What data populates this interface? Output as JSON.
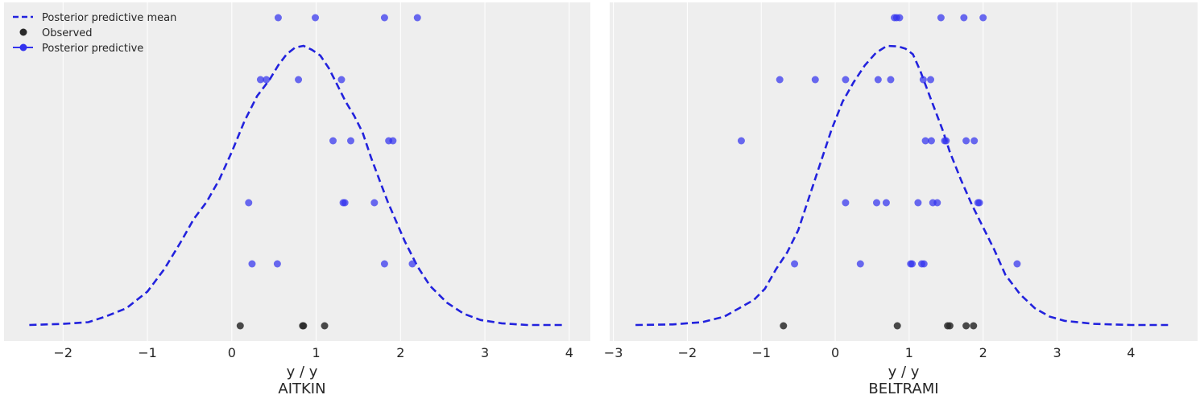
{
  "chart_data": [
    {
      "type": "scatter",
      "xlabel_line1": "y / y",
      "xlabel_line2": "AITKIN",
      "xlim": [
        -2.7,
        4.25
      ],
      "xticks": [
        -2,
        -1,
        0,
        1,
        2,
        3,
        4
      ],
      "xtick_labels": [
        "−2",
        "−1",
        "0",
        "1",
        "2",
        "3",
        "4"
      ],
      "grid": true,
      "legend": {
        "placement": "top-left",
        "entries": [
          {
            "label": "Posterior predictive mean",
            "style": "dashed-line"
          },
          {
            "label": "Observed",
            "style": "marker"
          },
          {
            "label": "Posterior predictive",
            "style": "line-marker"
          }
        ]
      },
      "mean_curve": [
        [
          -2.4,
          0.0
        ],
        [
          -2.0,
          0.004
        ],
        [
          -1.7,
          0.01
        ],
        [
          -1.5,
          0.03
        ],
        [
          -1.25,
          0.06
        ],
        [
          -1.0,
          0.12
        ],
        [
          -0.8,
          0.2
        ],
        [
          -0.6,
          0.3
        ],
        [
          -0.45,
          0.38
        ],
        [
          -0.3,
          0.44
        ],
        [
          -0.15,
          0.52
        ],
        [
          0.0,
          0.62
        ],
        [
          0.15,
          0.73
        ],
        [
          0.3,
          0.82
        ],
        [
          0.45,
          0.88
        ],
        [
          0.55,
          0.93
        ],
        [
          0.65,
          0.97
        ],
        [
          0.75,
          0.994
        ],
        [
          0.85,
          1.0
        ],
        [
          0.95,
          0.986
        ],
        [
          1.05,
          0.965
        ],
        [
          1.15,
          0.92
        ],
        [
          1.25,
          0.86
        ],
        [
          1.35,
          0.8
        ],
        [
          1.45,
          0.75
        ],
        [
          1.55,
          0.69
        ],
        [
          1.65,
          0.6
        ],
        [
          1.75,
          0.52
        ],
        [
          1.85,
          0.44
        ],
        [
          1.95,
          0.37
        ],
        [
          2.05,
          0.3
        ],
        [
          2.2,
          0.21
        ],
        [
          2.35,
          0.14
        ],
        [
          2.55,
          0.08
        ],
        [
          2.75,
          0.04
        ],
        [
          2.95,
          0.018
        ],
        [
          3.2,
          0.006
        ],
        [
          3.5,
          0.0
        ],
        [
          3.95,
          0.0
        ]
      ],
      "observed": [
        0.1,
        0.84,
        0.85,
        1.1
      ],
      "posterior_predictive": [
        [
          0.55,
          2.2,
          0.99,
          1.81
        ],
        [
          0.34,
          0.41,
          0.79,
          1.3
        ],
        [
          1.2,
          1.41,
          1.86,
          1.91
        ],
        [
          0.2,
          1.32,
          1.34,
          1.69
        ],
        [
          0.24,
          0.54,
          1.81,
          2.14
        ]
      ]
    },
    {
      "type": "scatter",
      "xlabel_line1": "y / y",
      "xlabel_line2": "BELTRAMI",
      "xlim": [
        -3.05,
        4.9
      ],
      "xticks": [
        -3,
        -2,
        -1,
        0,
        1,
        2,
        3,
        4
      ],
      "xtick_labels": [
        "−3",
        "−2",
        "−1",
        "0",
        "1",
        "2",
        "3",
        "4"
      ],
      "grid": true,
      "mean_curve": [
        [
          -2.7,
          0.0
        ],
        [
          -2.2,
          0.002
        ],
        [
          -1.8,
          0.01
        ],
        [
          -1.5,
          0.03
        ],
        [
          -1.3,
          0.06
        ],
        [
          -1.1,
          0.09
        ],
        [
          -0.95,
          0.13
        ],
        [
          -0.8,
          0.2
        ],
        [
          -0.65,
          0.26
        ],
        [
          -0.5,
          0.34
        ],
        [
          -0.35,
          0.46
        ],
        [
          -0.2,
          0.58
        ],
        [
          -0.05,
          0.7
        ],
        [
          0.1,
          0.8
        ],
        [
          0.25,
          0.87
        ],
        [
          0.4,
          0.93
        ],
        [
          0.55,
          0.975
        ],
        [
          0.7,
          1.0
        ],
        [
          0.85,
          0.998
        ],
        [
          0.95,
          0.99
        ],
        [
          1.05,
          0.97
        ],
        [
          1.15,
          0.91
        ],
        [
          1.25,
          0.84
        ],
        [
          1.35,
          0.77
        ],
        [
          1.45,
          0.7
        ],
        [
          1.55,
          0.62
        ],
        [
          1.7,
          0.52
        ],
        [
          1.85,
          0.43
        ],
        [
          2.0,
          0.35
        ],
        [
          2.15,
          0.27
        ],
        [
          2.3,
          0.18
        ],
        [
          2.5,
          0.11
        ],
        [
          2.7,
          0.06
        ],
        [
          2.9,
          0.03
        ],
        [
          3.1,
          0.015
        ],
        [
          3.5,
          0.004
        ],
        [
          4.0,
          0.0
        ],
        [
          4.5,
          0.0
        ]
      ],
      "observed": [
        -0.7,
        0.84,
        1.52,
        1.55,
        1.77,
        1.87
      ],
      "posterior_predictive": [
        [
          0.8,
          0.83,
          0.87,
          1.43,
          1.74,
          2.0
        ],
        [
          -0.75,
          -0.27,
          0.14,
          0.58,
          0.75,
          1.19,
          1.29
        ],
        [
          -1.27,
          1.22,
          1.3,
          1.48,
          1.5,
          1.77,
          1.88
        ],
        [
          0.14,
          0.56,
          0.69,
          1.12,
          1.32,
          1.38,
          1.93,
          1.95
        ],
        [
          -0.55,
          0.34,
          1.02,
          1.04,
          1.17,
          1.2,
          2.46
        ]
      ]
    }
  ],
  "colors": {
    "mean_line": "#2222dd",
    "observed": "#2a2a2a",
    "predictive": "#3333ee",
    "axes_bg": "#eeeeee",
    "grid": "#ffffff"
  }
}
